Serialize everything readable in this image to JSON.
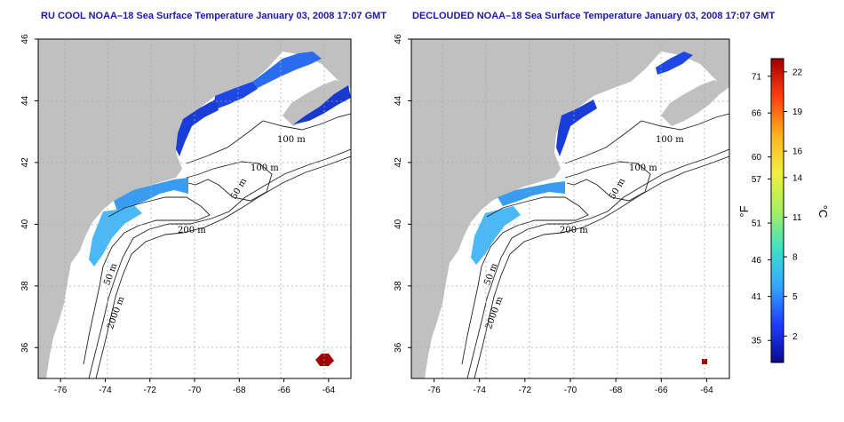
{
  "left_map": {
    "title": "RU COOL NOAA–18 Sea Surface Temperature January 03, 2008 17:07 GMT"
  },
  "right_map": {
    "title": "DECLOUDED NOAA–18 Sea Surface Temperature January 03, 2008 17:07 GMT"
  },
  "axes": {
    "lon_ticks": [
      "-76",
      "-74",
      "-72",
      "-70",
      "-68",
      "-66",
      "-64"
    ],
    "lat_ticks": [
      "36",
      "38",
      "40",
      "42",
      "44",
      "46"
    ],
    "lon_range": [
      -77.0,
      -63.0
    ],
    "lat_range": [
      35.0,
      46.0
    ],
    "grid": "dotted"
  },
  "contour_labels": {
    "left": [
      "100 m",
      "100 m",
      "50 m",
      "200 m",
      "50 m",
      "2000 m"
    ],
    "right": [
      "100 m",
      "100 m",
      "50 m",
      "200 m",
      "50 m",
      "2000 m"
    ]
  },
  "colorbar": {
    "fahrenheit_label": "°F",
    "celsius_label": "°C",
    "f_ticks": [
      "71",
      "66",
      "60",
      "57",
      "51",
      "46",
      "41",
      "35"
    ],
    "c_ticks": [
      "22",
      "19",
      "16",
      "14",
      "11",
      "8",
      "5",
      "2"
    ],
    "f_values": [
      71,
      66,
      60,
      57,
      51,
      46,
      41,
      35
    ],
    "c_values": [
      22,
      19,
      16,
      14,
      11,
      8,
      5,
      2
    ],
    "range_c": [
      0,
      23
    ],
    "colors": [
      "#0a0a8c",
      "#1e3cff",
      "#33a6ff",
      "#3fe0c8",
      "#a6f060",
      "#f0f040",
      "#ffb020",
      "#ff4010",
      "#a00000"
    ]
  },
  "colors": {
    "land": "#c0c0c0",
    "ocean": "#ffffff",
    "title": "#1a1aa6"
  }
}
